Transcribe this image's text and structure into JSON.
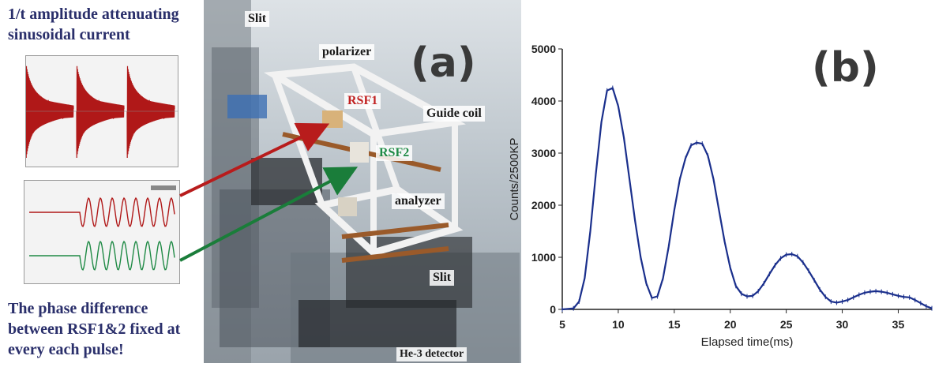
{
  "left_panel": {
    "title": "1/t amplitude attenuating sinusoidal current",
    "caption": "The phase difference between RSF1&2 fixed at every each pulse!"
  },
  "photo_panel": {
    "letter": "(a)",
    "labels": {
      "slit_top": "Slit",
      "polarizer": "polarizer",
      "rsf1": "RSF1",
      "guide_coil": "Guide coil",
      "rsf2": "RSF2",
      "analyzer": "analyzer",
      "slit_bottom": "Slit",
      "detector": "He-3 detector"
    }
  },
  "chart_panel": {
    "letter": "(b)"
  },
  "colors": {
    "title_text": "#2a2f6b",
    "damped_wave": "#b01818",
    "rsf1_label": "#c02020",
    "rsf2_label": "#1f8a45",
    "arrow_red": "#b81c1c",
    "arrow_green": "#1a7d3a",
    "curve": "#1a2f8c"
  },
  "chart_data": {
    "type": "line",
    "xlabel": "Elapsed time(ms)",
    "ylabel": "Counts/2500KP",
    "xlim": [
      5,
      38
    ],
    "ylim": [
      0,
      5000
    ],
    "xticks": [
      5,
      10,
      15,
      20,
      25,
      30,
      35
    ],
    "yticks": [
      0,
      1000,
      2000,
      3000,
      4000,
      5000
    ],
    "grid": false,
    "series": [
      {
        "x": [
          5,
          6,
          6.5,
          7,
          7.5,
          8,
          8.5,
          9,
          9.5,
          10,
          10.5,
          11,
          11.5,
          12,
          12.5,
          13,
          13.5,
          14,
          14.5,
          15,
          15.5,
          16,
          16.5,
          17,
          17.5,
          18,
          18.5,
          19,
          19.5,
          20,
          20.5,
          21,
          21.5,
          22,
          22.5,
          23,
          23.5,
          24,
          24.5,
          25,
          25.5,
          26,
          26.5,
          27,
          27.5,
          28,
          28.5,
          29,
          29.5,
          30,
          30.5,
          31,
          31.5,
          32,
          32.5,
          33,
          33.5,
          34,
          34.5,
          35,
          35.5,
          36,
          36.5,
          37,
          37.5,
          38
        ],
        "y": [
          0,
          20,
          150,
          600,
          1500,
          2600,
          3600,
          4200,
          4250,
          3900,
          3300,
          2500,
          1700,
          1000,
          500,
          220,
          250,
          600,
          1200,
          1900,
          2500,
          2900,
          3150,
          3200,
          3180,
          2950,
          2500,
          1900,
          1300,
          800,
          450,
          300,
          250,
          260,
          350,
          500,
          680,
          850,
          980,
          1050,
          1060,
          1020,
          900,
          740,
          560,
          380,
          240,
          150,
          130,
          150,
          180,
          230,
          280,
          320,
          340,
          350,
          340,
          320,
          290,
          260,
          240,
          230,
          180,
          120,
          60,
          20
        ]
      }
    ]
  }
}
